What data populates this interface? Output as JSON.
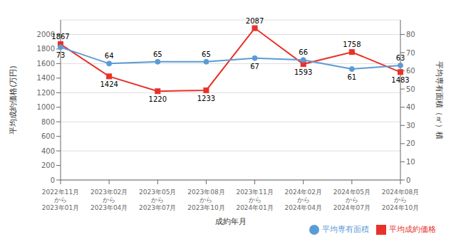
{
  "chart_data": {
    "type": "line",
    "categories": [
      "2022年11月\nから\n2023年01月",
      "2023年02月\nから\n2023年04月",
      "2023年05月\nから\n2023年07月",
      "2023年08月\nから\n2023年10月",
      "2023年11月\nから\n2024年01月",
      "2024年02月\nから\n2024年04月",
      "2024年05月\nから\n2024年07月",
      "2024年08月\nから\n2024年10月"
    ],
    "series": [
      {
        "name": "平均成約価格",
        "color": "#e8312a",
        "marker": "square",
        "values": [
          1867,
          1424,
          1220,
          1233,
          2087,
          1593,
          1758,
          1483
        ]
      },
      {
        "name": "平均専有面積",
        "color": "#5b9bd5",
        "marker": "circle",
        "axis": "y2",
        "values": [
          73,
          64,
          65,
          65,
          67,
          66,
          61,
          63
        ]
      }
    ],
    "xlabel": "成約年月",
    "ylabel": "平均成約価格(万円)",
    "y2label": "平均専有面積（㎡）積",
    "ylim": [
      0,
      2200
    ],
    "yticks": [
      0,
      200,
      400,
      600,
      800,
      1000,
      1200,
      1400,
      1600,
      1800,
      2000
    ],
    "y2lim": [
      0,
      88
    ],
    "y2ticks": [
      0,
      10,
      20,
      30,
      40,
      50,
      60,
      70,
      80
    ],
    "data_labels": true,
    "grid": true,
    "legend": "lower right"
  }
}
